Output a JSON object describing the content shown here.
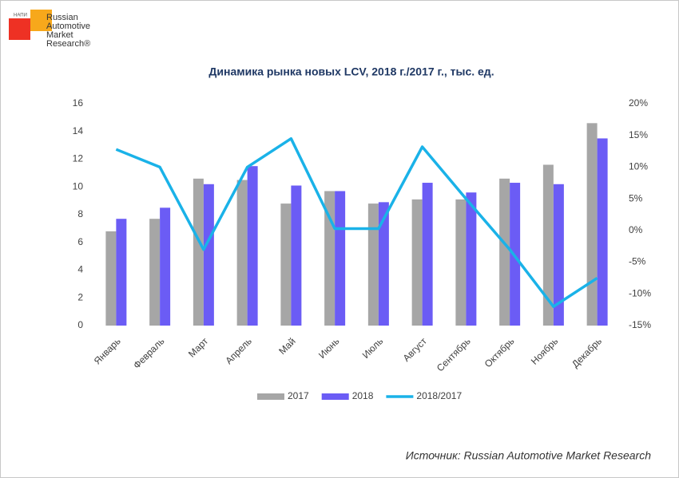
{
  "logo": {
    "small": "НАПИ",
    "lines": [
      "Russian",
      "Automotive",
      "Market",
      "Research®"
    ]
  },
  "chart_data": {
    "type": "bar-line",
    "title": "Динамика рынка новых LCV, 2018 г./2017 г., тыс. ед.",
    "categories": [
      "Январь",
      "Февраль",
      "Март",
      "Апрель",
      "Май",
      "Июнь",
      "Июль",
      "Август",
      "Сентябрь",
      "Октябрь",
      "Ноябрь",
      "Декабрь"
    ],
    "series": [
      {
        "name": "2017",
        "type": "bar",
        "color": "#a6a6a6",
        "values": [
          6.8,
          7.7,
          10.6,
          10.5,
          8.8,
          9.7,
          8.8,
          9.1,
          9.1,
          10.6,
          11.6,
          14.6
        ]
      },
      {
        "name": "2018",
        "type": "bar",
        "color": "#6b5cf5",
        "values": [
          7.7,
          8.5,
          10.2,
          11.5,
          10.1,
          9.7,
          8.9,
          10.3,
          9.6,
          10.3,
          10.2,
          13.5
        ]
      },
      {
        "name": "2018/2017",
        "type": "line",
        "axis": "y2",
        "color": "#1ab2e8",
        "values": [
          12.8,
          10,
          -3,
          10,
          14.5,
          0.3,
          0.3,
          13.2,
          5,
          -3,
          -12,
          -7.5
        ]
      }
    ],
    "ylim": [
      0,
      16
    ],
    "yticks": [
      0,
      2,
      4,
      6,
      8,
      10,
      12,
      14,
      16
    ],
    "y2lim": [
      -15,
      20
    ],
    "y2ticks": [
      {
        "value": -15,
        "label": "-15%"
      },
      {
        "value": -10,
        "label": "-10%"
      },
      {
        "value": -5,
        "label": "-5%"
      },
      {
        "value": 0,
        "label": "0%"
      },
      {
        "value": 5,
        "label": "5%"
      },
      {
        "value": 10,
        "label": "10%"
      },
      {
        "value": 15,
        "label": "15%"
      },
      {
        "value": 20,
        "label": "20%"
      }
    ],
    "grid": false,
    "legend": "bottom",
    "source": "Источник: Russian Automotive Market Research"
  }
}
